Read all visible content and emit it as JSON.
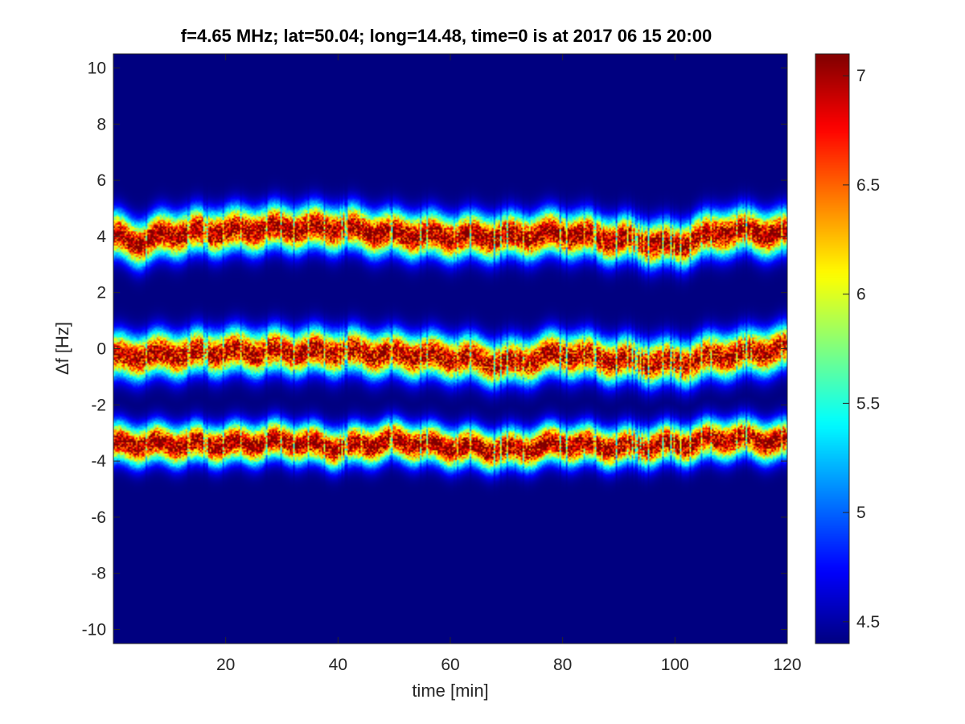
{
  "chart_data": {
    "type": "heatmap",
    "title": "f=4.65 MHz;  lat=50.04; long=14.48, time=0 is at 2017 06 15 20:00",
    "xlabel": "time [min]",
    "ylabel": "Δf [Hz]",
    "xlim": [
      0,
      120
    ],
    "ylim": [
      -10.5,
      10.5
    ],
    "x_ticks": [
      "20",
      "40",
      "60",
      "80",
      "100",
      "120"
    ],
    "y_ticks": [
      "10",
      "8",
      "6",
      "4",
      "2",
      "0",
      "-2",
      "-4",
      "-6",
      "-8",
      "-10"
    ],
    "colorbar": {
      "colormap": "jet",
      "limits": [
        4.4,
        7.1
      ],
      "ticks": [
        "4.5",
        "5",
        "5.5",
        "6",
        "6.5",
        "7"
      ]
    },
    "background_value": 4.4,
    "bands": [
      {
        "label": "upper trace",
        "center_hz": [
          {
            "t": 0,
            "f": 4.0
          },
          {
            "t": 5,
            "f": 3.8
          },
          {
            "t": 10,
            "f": 4.1
          },
          {
            "t": 20,
            "f": 4.2
          },
          {
            "t": 30,
            "f": 4.3
          },
          {
            "t": 40,
            "f": 4.3
          },
          {
            "t": 50,
            "f": 4.1
          },
          {
            "t": 60,
            "f": 4.0
          },
          {
            "t": 70,
            "f": 4.0
          },
          {
            "t": 80,
            "f": 4.1
          },
          {
            "t": 90,
            "f": 3.9
          },
          {
            "t": 100,
            "f": 3.7
          },
          {
            "t": 105,
            "f": 4.0
          },
          {
            "t": 110,
            "f": 4.2
          },
          {
            "t": 120,
            "f": 4.1
          }
        ],
        "peak_value": 7.1,
        "halfwidth_hz": 0.9
      },
      {
        "label": "middle trace",
        "center_hz": [
          {
            "t": 0,
            "f": -0.3
          },
          {
            "t": 10,
            "f": -0.2
          },
          {
            "t": 20,
            "f": -0.1
          },
          {
            "t": 30,
            "f": -0.1
          },
          {
            "t": 40,
            "f": -0.1
          },
          {
            "t": 50,
            "f": -0.2
          },
          {
            "t": 60,
            "f": -0.3
          },
          {
            "t": 70,
            "f": -0.5
          },
          {
            "t": 80,
            "f": -0.2
          },
          {
            "t": 90,
            "f": -0.4
          },
          {
            "t": 100,
            "f": -0.5
          },
          {
            "t": 110,
            "f": -0.2
          },
          {
            "t": 120,
            "f": 0.0
          }
        ],
        "peak_value": 7.0,
        "halfwidth_hz": 0.9
      },
      {
        "label": "lower trace",
        "center_hz": [
          {
            "t": 0,
            "f": -3.4
          },
          {
            "t": 10,
            "f": -3.4
          },
          {
            "t": 20,
            "f": -3.4
          },
          {
            "t": 30,
            "f": -3.3
          },
          {
            "t": 40,
            "f": -3.5
          },
          {
            "t": 50,
            "f": -3.3
          },
          {
            "t": 60,
            "f": -3.5
          },
          {
            "t": 70,
            "f": -3.6
          },
          {
            "t": 80,
            "f": -3.4
          },
          {
            "t": 90,
            "f": -3.5
          },
          {
            "t": 100,
            "f": -3.4
          },
          {
            "t": 110,
            "f": -3.2
          },
          {
            "t": 120,
            "f": -3.3
          }
        ],
        "peak_value": 7.1,
        "halfwidth_hz": 0.8
      }
    ]
  }
}
